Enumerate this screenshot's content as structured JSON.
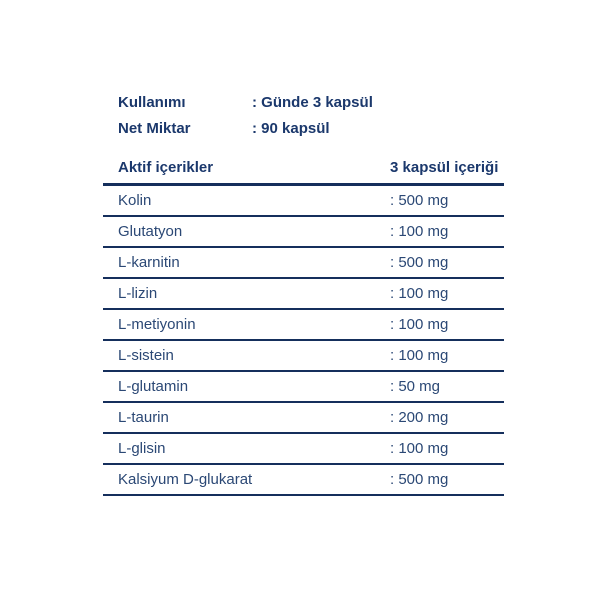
{
  "page": {
    "background": "#ffffff",
    "text_bold_color": "#1b386c",
    "text_regular_color": "#2b4875",
    "rule_color": "#152f5c"
  },
  "info": {
    "rows": [
      {
        "label": "Kullanımı",
        "value": ": Günde 3 kapsül"
      },
      {
        "label": "Net Miktar",
        "value": ": 90 kapsül"
      }
    ]
  },
  "table": {
    "header": {
      "left": "Aktif içerikler",
      "right": "3 kapsül içeriği"
    },
    "rows": [
      {
        "name": "Kolin",
        "amount": ": 500 mg"
      },
      {
        "name": "Glutatyon",
        "amount": ": 100 mg"
      },
      {
        "name": "L-karnitin",
        "amount": ": 500 mg"
      },
      {
        "name": "L-lizin",
        "amount": ": 100 mg"
      },
      {
        "name": "L-metiyonin",
        "amount": ": 100 mg"
      },
      {
        "name": "L-sistein",
        "amount": ": 100 mg"
      },
      {
        "name": "L-glutamin",
        "amount": ": 50 mg"
      },
      {
        "name": "L-taurin",
        "amount": ": 200 mg"
      },
      {
        "name": "L-glisin",
        "amount": ": 100 mg"
      },
      {
        "name": "Kalsiyum D-glukarat",
        "amount": ": 500 mg"
      }
    ]
  }
}
